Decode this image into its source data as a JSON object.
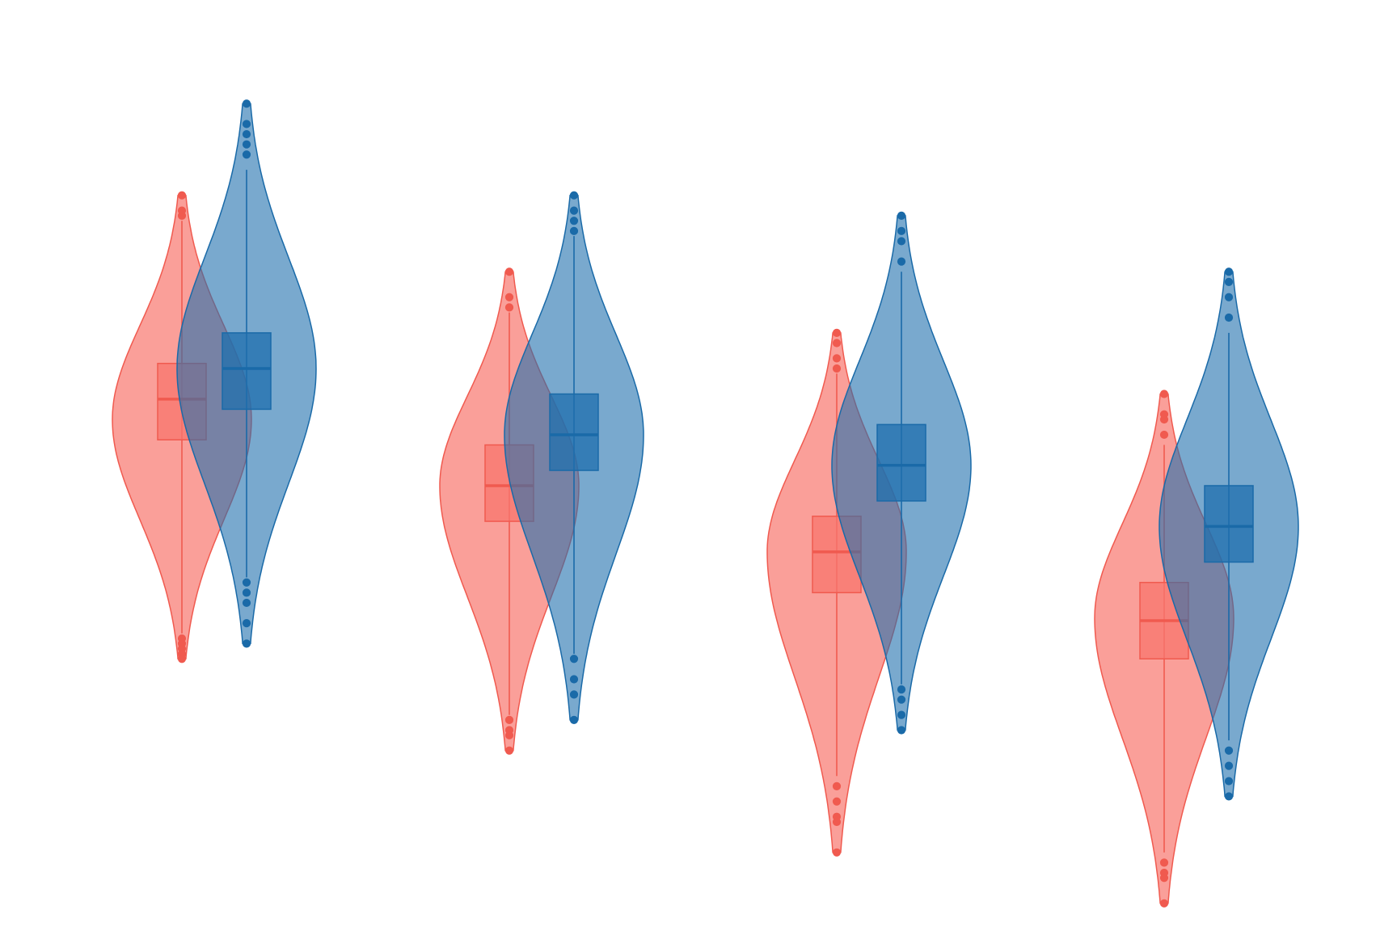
{
  "chart_data": {
    "type": "violin",
    "background": "#ffffff",
    "axes_visible": false,
    "grid": false,
    "ylim": [
      -5,
      11.5
    ],
    "categories": [
      "",
      "",
      "",
      ""
    ],
    "series": [
      {
        "color": "#f8766d",
        "stroke": "#f05a4f",
        "groups": [
          {
            "median": 4.3,
            "q1": 3.5,
            "q3": 5.0,
            "whisker_low": -0.3,
            "whisker_high": 7.8,
            "density_max": 3.9,
            "min": -0.8,
            "max": 8.3,
            "outliers_low": [
              -0.4,
              -0.5,
              -0.6,
              -0.7,
              -0.8
            ],
            "outliers_high": [
              7.9,
              8.0,
              8.3
            ]
          },
          {
            "median": 2.6,
            "q1": 1.9,
            "q3": 3.4,
            "whisker_low": -1.9,
            "whisker_high": 6.0,
            "density_max": 2.6,
            "min": -2.6,
            "max": 6.8,
            "outliers_low": [
              -2.0,
              -2.2,
              -2.3,
              -2.6
            ],
            "outliers_high": [
              6.1,
              6.3,
              6.8
            ]
          },
          {
            "median": 1.3,
            "q1": 0.5,
            "q3": 2.0,
            "whisker_low": -3.1,
            "whisker_high": 4.8,
            "density_max": 1.3,
            "min": -4.6,
            "max": 5.6,
            "outliers_low": [
              -3.3,
              -3.6,
              -3.9,
              -4.0,
              -4.6
            ],
            "outliers_high": [
              4.9,
              5.1,
              5.4,
              5.6
            ]
          },
          {
            "median": -0.05,
            "q1": -0.8,
            "q3": 0.7,
            "whisker_low": -4.6,
            "whisker_high": 3.4,
            "density_max": 0.0,
            "min": -5.6,
            "max": 4.4,
            "outliers_low": [
              -4.8,
              -5.0,
              -5.1,
              -5.6
            ],
            "outliers_high": [
              3.6,
              3.9,
              4.0,
              4.4
            ]
          }
        ]
      },
      {
        "color": "#1f6fae",
        "stroke": "#1a6aa8",
        "groups": [
          {
            "median": 4.9,
            "q1": 4.1,
            "q3": 5.6,
            "whisker_low": 0.8,
            "whisker_high": 8.8,
            "density_max": 4.9,
            "min": -0.5,
            "max": 10.1,
            "outliers_low": [
              0.7,
              0.5,
              0.3,
              -0.1,
              -0.5
            ],
            "outliers_high": [
              9.1,
              9.3,
              9.5,
              9.7,
              10.1
            ]
          },
          {
            "median": 3.6,
            "q1": 2.9,
            "q3": 4.4,
            "whisker_low": -0.7,
            "whisker_high": 7.5,
            "density_max": 3.6,
            "min": -2.0,
            "max": 8.3,
            "outliers_low": [
              -0.8,
              -1.2,
              -1.5,
              -2.0
            ],
            "outliers_high": [
              7.6,
              7.8,
              8.0,
              8.3
            ]
          },
          {
            "median": 3.0,
            "q1": 2.3,
            "q3": 3.8,
            "whisker_low": -1.3,
            "whisker_high": 6.8,
            "density_max": 3.0,
            "min": -2.2,
            "max": 7.9,
            "outliers_low": [
              -1.4,
              -1.6,
              -1.9,
              -2.2
            ],
            "outliers_high": [
              7.0,
              7.4,
              7.6,
              7.9
            ]
          },
          {
            "median": 1.8,
            "q1": 1.1,
            "q3": 2.6,
            "whisker_low": -2.4,
            "whisker_high": 5.6,
            "density_max": 1.8,
            "min": -3.5,
            "max": 6.8,
            "outliers_low": [
              -2.6,
              -2.9,
              -3.2,
              -3.5
            ],
            "outliers_high": [
              5.9,
              6.3,
              6.6,
              6.8
            ]
          }
        ]
      }
    ]
  }
}
